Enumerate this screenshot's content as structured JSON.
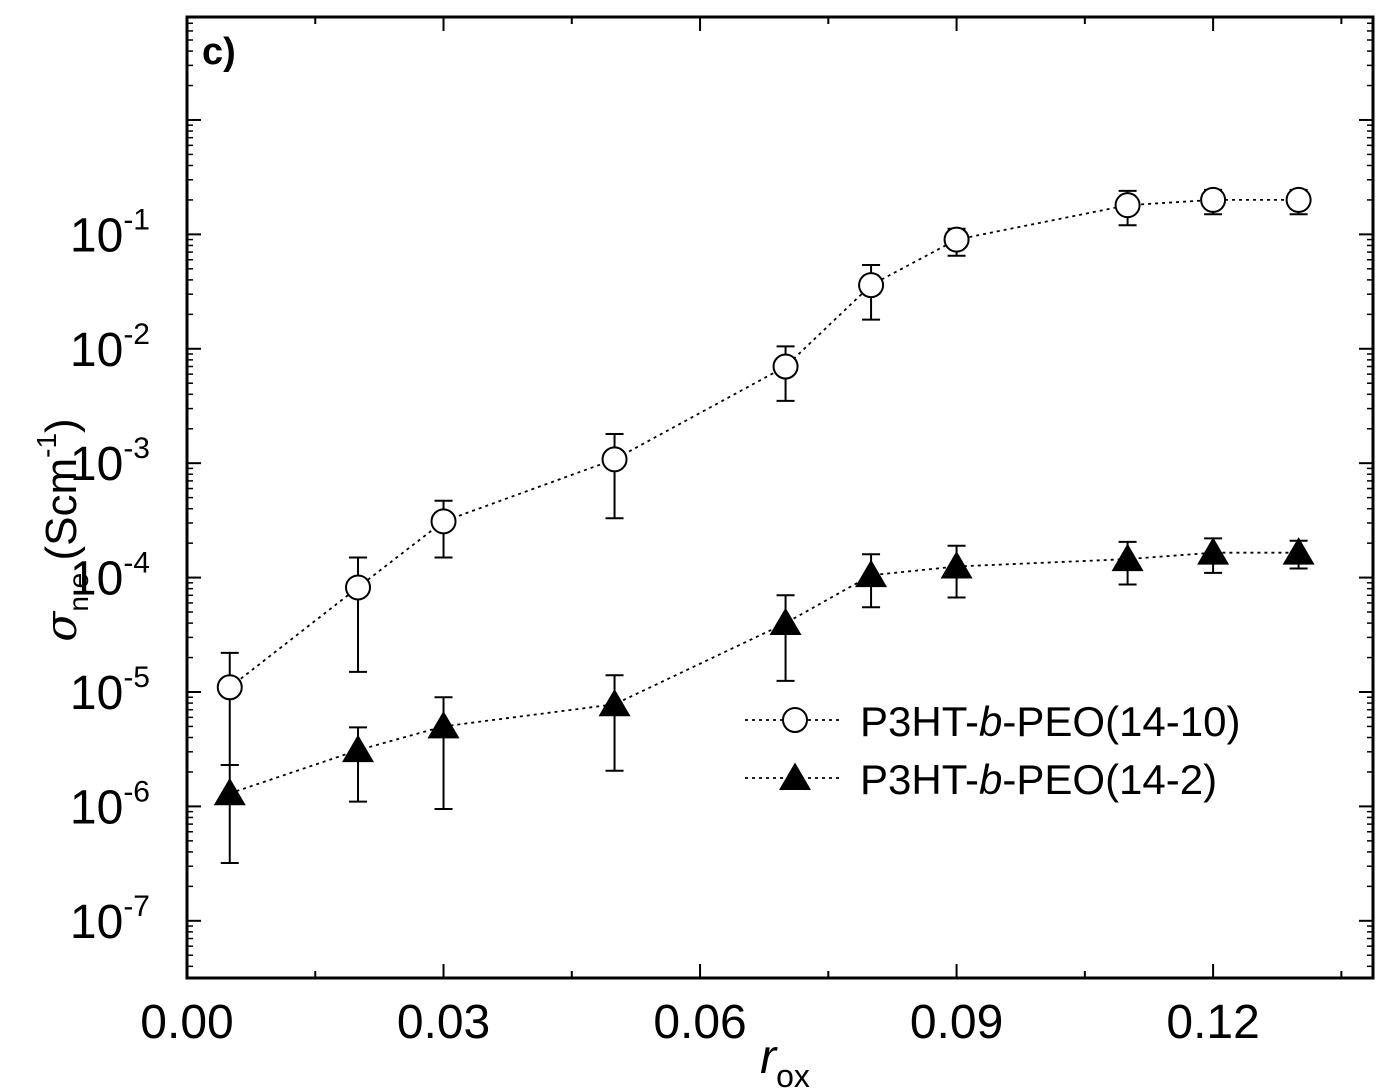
{
  "chart_data": {
    "type": "scatter",
    "panel_label": "c)",
    "xlabel": {
      "main": "r",
      "sub": "ox"
    },
    "ylabel": {
      "sigma": "σ",
      "sub": "n,e",
      "unit": "(Scm",
      "sup": "-1",
      "close": ")"
    },
    "xlim": [
      0.0,
      0.1387
    ],
    "ylim_log10": [
      -7.5,
      0.9
    ],
    "y_scale": "log",
    "x_ticks": [
      {
        "value": 0.0,
        "label": "0.00"
      },
      {
        "value": 0.03,
        "label": "0.03"
      },
      {
        "value": 0.06,
        "label": "0.06"
      },
      {
        "value": 0.09,
        "label": "0.09"
      },
      {
        "value": 0.12,
        "label": "0.12"
      }
    ],
    "x_minor_ticks": [
      0.015,
      0.045,
      0.075,
      0.105,
      0.135
    ],
    "y_ticks": [
      {
        "exp": -7,
        "base": "10",
        "sup": "-7"
      },
      {
        "exp": -6,
        "base": "10",
        "sup": "-6"
      },
      {
        "exp": -5,
        "base": "10",
        "sup": "-5"
      },
      {
        "exp": -4,
        "base": "10",
        "sup": "-4"
      },
      {
        "exp": -3,
        "base": "10",
        "sup": "-3"
      },
      {
        "exp": -2,
        "base": "10",
        "sup": "-2"
      },
      {
        "exp": -1,
        "base": "10",
        "sup": "-1"
      }
    ],
    "legend_position": "right-middle",
    "grid": false,
    "series": [
      {
        "name": "P3HT-b-PEO(14-10)",
        "legend_parts": [
          "P3HT-",
          "b",
          "-PEO(14-10)"
        ],
        "marker": "open-circle",
        "line": "dotted",
        "points": [
          {
            "x": 0.005,
            "y": 1.1e-05,
            "y_low": 2.3e-06,
            "y_high": 2.2e-05
          },
          {
            "x": 0.02,
            "y": 8.2e-05,
            "y_low": 1.5e-05,
            "y_high": 0.00015
          },
          {
            "x": 0.03,
            "y": 0.00031,
            "y_low": 0.00015,
            "y_high": 0.00047
          },
          {
            "x": 0.05,
            "y": 0.00108,
            "y_low": 0.00033,
            "y_high": 0.0018
          },
          {
            "x": 0.07,
            "y": 0.007,
            "y_low": 0.0035,
            "y_high": 0.0105
          },
          {
            "x": 0.08,
            "y": 0.036,
            "y_low": 0.018,
            "y_high": 0.054
          },
          {
            "x": 0.09,
            "y": 0.09,
            "y_low": 0.065,
            "y_high": 0.112
          },
          {
            "x": 0.11,
            "y": 0.18,
            "y_low": 0.12,
            "y_high": 0.24
          },
          {
            "x": 0.12,
            "y": 0.2,
            "y_low": 0.15,
            "y_high": 0.245
          },
          {
            "x": 0.13,
            "y": 0.2,
            "y_low": 0.15,
            "y_high": 0.245
          }
        ]
      },
      {
        "name": "P3HT-b-PEO(14-2)",
        "legend_parts": [
          "P3HT-",
          "b",
          "-PEO(14-2)"
        ],
        "marker": "filled-triangle",
        "line": "dotted",
        "points": [
          {
            "x": 0.005,
            "y": 1.3e-06,
            "y_low": 3.2e-07,
            "y_high": 2.3e-06
          },
          {
            "x": 0.02,
            "y": 3.1e-06,
            "y_low": 1.1e-06,
            "y_high": 4.9e-06
          },
          {
            "x": 0.03,
            "y": 5e-06,
            "y_low": 9.5e-07,
            "y_high": 9e-06
          },
          {
            "x": 0.05,
            "y": 7.8e-06,
            "y_low": 2.05e-06,
            "y_high": 1.4e-05
          },
          {
            "x": 0.07,
            "y": 4e-05,
            "y_low": 1.25e-05,
            "y_high": 7e-05
          },
          {
            "x": 0.08,
            "y": 0.000105,
            "y_low": 5.5e-05,
            "y_high": 0.00016
          },
          {
            "x": 0.09,
            "y": 0.000125,
            "y_low": 6.7e-05,
            "y_high": 0.00019
          },
          {
            "x": 0.11,
            "y": 0.000145,
            "y_low": 8.7e-05,
            "y_high": 0.000205
          },
          {
            "x": 0.12,
            "y": 0.000165,
            "y_low": 0.00011,
            "y_high": 0.00022
          },
          {
            "x": 0.13,
            "y": 0.000165,
            "y_low": 0.00012,
            "y_high": 0.00021
          }
        ]
      }
    ],
    "colors": {
      "axis": "#000000",
      "marker_fill_circle": "#ffffff",
      "marker_fill_triangle": "#000000"
    }
  }
}
